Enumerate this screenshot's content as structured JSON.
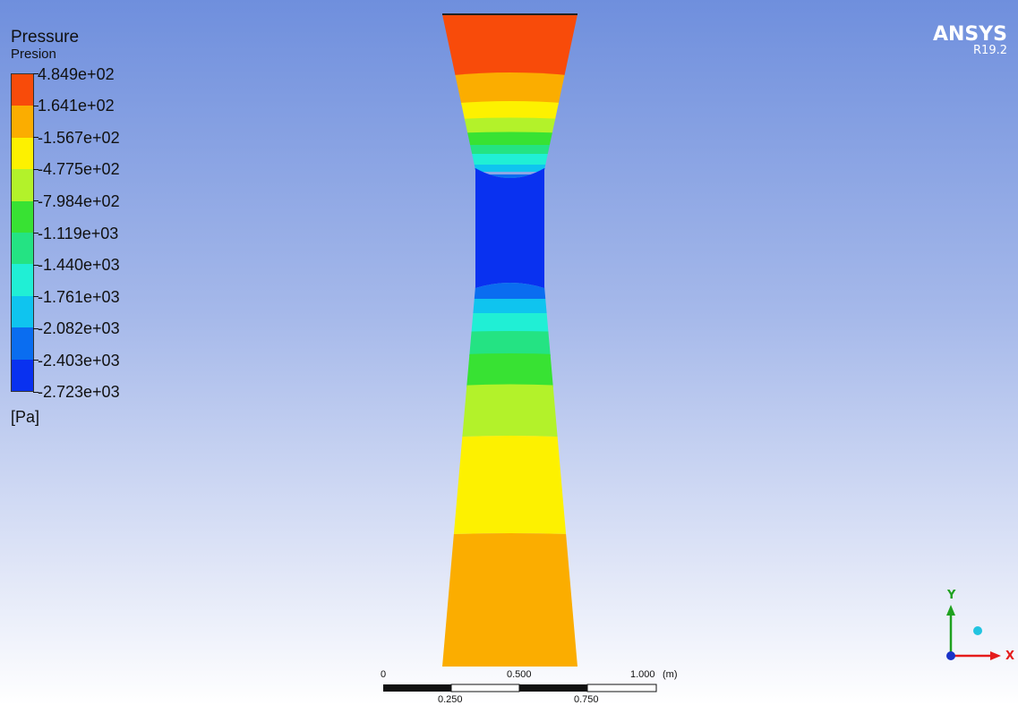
{
  "legend": {
    "title": "Pressure",
    "subtitle": "Presion",
    "unit": "[Pa]",
    "ticks": [
      "4.849e+02",
      "1.641e+02",
      "-1.567e+02",
      "-4.775e+02",
      "-7.984e+02",
      "-1.119e+03",
      "-1.440e+03",
      "-1.761e+03",
      "-2.082e+03",
      "-2.403e+03",
      "-2.723e+03"
    ],
    "colors": [
      "#f84b0a",
      "#fbad00",
      "#fdf100",
      "#b3f22a",
      "#38e233",
      "#24e383",
      "#20efd5",
      "#0fc4ef",
      "#0a6df0",
      "#0931f0"
    ]
  },
  "brand": {
    "name": "ANSYS",
    "version": "R19.2"
  },
  "scale": {
    "labels_top": [
      "0",
      "0.500",
      "1.000"
    ],
    "unit": "(m)",
    "labels_bottom": [
      "0.250",
      "0.750"
    ]
  },
  "triad": {
    "x_label": "X",
    "y_label": "Y",
    "x_color": "#e51b1b",
    "y_color": "#1fa11f",
    "z_color": "#1a33c8"
  }
}
